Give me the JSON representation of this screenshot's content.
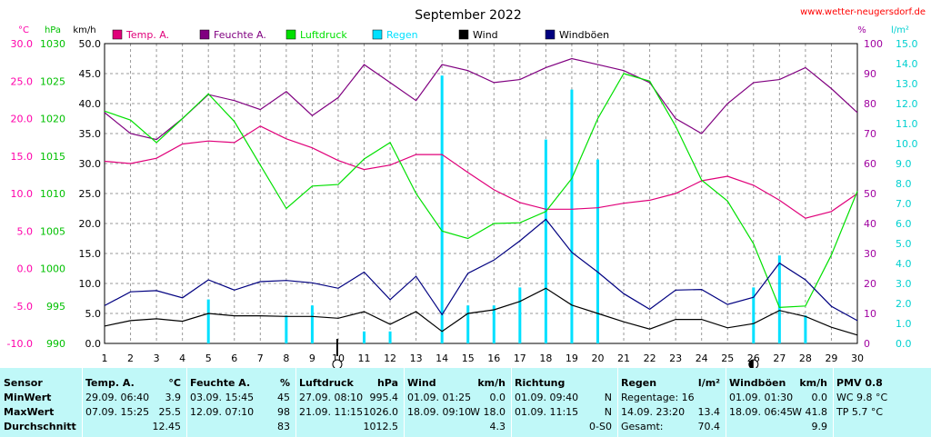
{
  "chart_data": {
    "type": "line",
    "title": "September 2022",
    "source": "www.wetter-neugersdorf.de",
    "x": [
      1,
      2,
      3,
      4,
      5,
      6,
      7,
      8,
      9,
      10,
      11,
      12,
      13,
      14,
      15,
      16,
      17,
      18,
      19,
      20,
      21,
      22,
      23,
      24,
      25,
      26,
      27,
      28,
      29,
      30
    ],
    "axes": {
      "temp": {
        "unit": "°C",
        "range": [
          -10,
          30
        ],
        "ticks": [
          "30.0",
          "25.0",
          "20.0",
          "15.0",
          "10.0",
          "5.0",
          "0.0",
          "-5.0",
          "-10.0"
        ],
        "color": "#ff00aa"
      },
      "pressure": {
        "unit": "hPa",
        "range": [
          990,
          1030
        ],
        "ticks": [
          "1030",
          "1025",
          "1020",
          "1015",
          "1010",
          "1005",
          "1000",
          "995",
          "990"
        ],
        "color": "#00c000"
      },
      "wind": {
        "unit": "km/h",
        "range": [
          0,
          50
        ],
        "ticks": [
          "50.0",
          "45.0",
          "40.0",
          "35.0",
          "30.0",
          "25.0",
          "20.0",
          "15.0",
          "10.0",
          "5.0",
          "0.0"
        ],
        "color": "#000000"
      },
      "humidity": {
        "unit": "%",
        "range": [
          0,
          100
        ],
        "ticks": [
          "100",
          "90",
          "80",
          "70",
          "60",
          "50",
          "40",
          "30",
          "20",
          "10",
          "0"
        ],
        "color": "#a000a0"
      },
      "rain": {
        "unit": "l/m²",
        "range": [
          0,
          15
        ],
        "ticks": [
          "15.0",
          "14.0",
          "13.0",
          "12.0",
          "11.0",
          "10.0",
          "9.0",
          "8.0",
          "7.0",
          "6.0",
          "5.0",
          "4.0",
          "3.0",
          "2.0",
          "1.0",
          "0.0"
        ],
        "color": "#00e0e0"
      }
    },
    "series": [
      {
        "name": "Temp. A.",
        "axis": "temp",
        "color": "#e0007a",
        "values": [
          14.3,
          14.0,
          14.7,
          16.6,
          17.0,
          16.8,
          19.0,
          17.3,
          16.1,
          14.4,
          13.2,
          13.8,
          15.2,
          15.2,
          12.8,
          10.5,
          8.8,
          7.9,
          7.9,
          8.1,
          8.7,
          9.1,
          10.0,
          11.7,
          12.3,
          11.1,
          9.1,
          6.7,
          7.6,
          10.0
        ]
      },
      {
        "name": "Feuchte A.",
        "axis": "humidity",
        "color": "#800080",
        "values": [
          77,
          70,
          68,
          75,
          83,
          81,
          78,
          84,
          76,
          82,
          93,
          87,
          81,
          93,
          91,
          87,
          88,
          92,
          95,
          93,
          91,
          87,
          75,
          70,
          80,
          87,
          88,
          92,
          85,
          77
        ]
      },
      {
        "name": "Luftdruck",
        "axis": "pressure",
        "color": "#00e000",
        "values": [
          1021.0,
          1019.8,
          1016.8,
          1020.0,
          1023.3,
          1019.6,
          1013.8,
          1008.0,
          1011.0,
          1011.2,
          1014.6,
          1016.8,
          1010.0,
          1005.0,
          1004.0,
          1006.0,
          1006.1,
          1007.6,
          1012.0,
          1020.0,
          1026.0,
          1025.0,
          1019.0,
          1011.8,
          1009.0,
          1003.3,
          994.8,
          995.0,
          1001.8,
          1010.3
        ]
      },
      {
        "name": "Regen",
        "axis": "rain",
        "type": "bar",
        "color": "#00e0ff",
        "values": [
          0,
          0,
          0,
          0,
          2.2,
          0,
          0,
          1.4,
          1.9,
          0,
          0.6,
          0.6,
          0,
          13.4,
          1.9,
          1.9,
          2.8,
          10.2,
          12.7,
          9.2,
          0,
          0,
          0,
          0,
          0,
          2.8,
          4.4,
          1.4,
          0,
          0
        ]
      },
      {
        "name": "Wind",
        "axis": "wind",
        "color": "#000000",
        "values": [
          2.9,
          3.8,
          4.1,
          3.7,
          5.0,
          4.6,
          4.6,
          4.5,
          4.5,
          4.2,
          5.3,
          3.2,
          5.3,
          2.0,
          5.0,
          5.6,
          7.0,
          9.2,
          6.4,
          5.0,
          3.6,
          2.4,
          4.0,
          4.0,
          2.6,
          3.3,
          5.5,
          4.5,
          2.7,
          1.4
        ]
      },
      {
        "name": "Windböen",
        "axis": "wind",
        "color": "#000080",
        "values": [
          6.3,
          8.6,
          8.8,
          7.6,
          10.6,
          8.9,
          10.3,
          10.5,
          10.1,
          9.2,
          11.9,
          7.3,
          11.2,
          4.8,
          11.7,
          13.9,
          17.1,
          20.7,
          15.2,
          11.9,
          8.3,
          5.7,
          8.9,
          9.0,
          6.5,
          7.7,
          13.4,
          10.6,
          6.2,
          3.8
        ]
      }
    ],
    "markers": [
      {
        "day": 10,
        "label": "new-moon",
        "glyph": "○"
      },
      {
        "day": 26,
        "label": "half-moon",
        "glyph": "◐"
      }
    ],
    "grid": true,
    "legend": "top"
  },
  "stats": {
    "columns": [
      {
        "header": "Sensor",
        "unit": "",
        "rows": [
          "MinWert",
          "MaxWert",
          "Durchschnitt"
        ]
      },
      {
        "header": "Temp. A.",
        "unit": "°C",
        "rows": [
          {
            "left": "29.09.  06:40",
            "right": "3.9"
          },
          {
            "left": "07.09.  15:25",
            "right": "25.5"
          },
          {
            "left": "",
            "right": "12.45"
          }
        ]
      },
      {
        "header": "Feuchte A.",
        "unit": "%",
        "rows": [
          {
            "left": "03.09.  15:45",
            "right": "45"
          },
          {
            "left": "12.09.  07:10",
            "right": "98"
          },
          {
            "left": "",
            "right": "83"
          }
        ]
      },
      {
        "header": "Luftdruck",
        "unit": "hPa",
        "rows": [
          {
            "left": "27.09.  08:10",
            "right": "995.4"
          },
          {
            "left": "21.09.  11:15",
            "right": "1026.0"
          },
          {
            "left": "",
            "right": "1012.5"
          }
        ]
      },
      {
        "header": "Wind",
        "unit": "km/h",
        "rows": [
          {
            "left": "01.09.  01:25",
            "right": "0.0"
          },
          {
            "left": "18.09.  09:10",
            "right": "W 18.0"
          },
          {
            "left": "",
            "right": "4.3"
          }
        ]
      },
      {
        "header": "Richtung",
        "unit": "",
        "rows": [
          {
            "left": "01.09.  09:40",
            "right": "N"
          },
          {
            "left": "01.09.  11:15",
            "right": "N"
          },
          {
            "left": "",
            "right": "0-S0"
          }
        ]
      },
      {
        "header": "Regen",
        "unit": "l/m²",
        "rows": [
          {
            "left": "Regentage: 16",
            "right": ""
          },
          {
            "left": "14.09.  23:20",
            "right": "13.4"
          },
          {
            "left": "Gesamt:",
            "right": "70.4"
          }
        ]
      },
      {
        "header": "Windböen",
        "unit": "km/h",
        "rows": [
          {
            "left": "01.09.  01:30",
            "right": "0.0"
          },
          {
            "left": "18.09.  06:45",
            "right": "W 41.8"
          },
          {
            "left": "",
            "right": "9.9"
          }
        ]
      },
      {
        "header": "PMV 0.8",
        "unit": "",
        "rows": [
          {
            "left": "WC 9.8 °C",
            "right": ""
          },
          {
            "left": "TP 5.7 °C",
            "right": ""
          },
          {
            "left": "",
            "right": ""
          }
        ]
      }
    ]
  }
}
